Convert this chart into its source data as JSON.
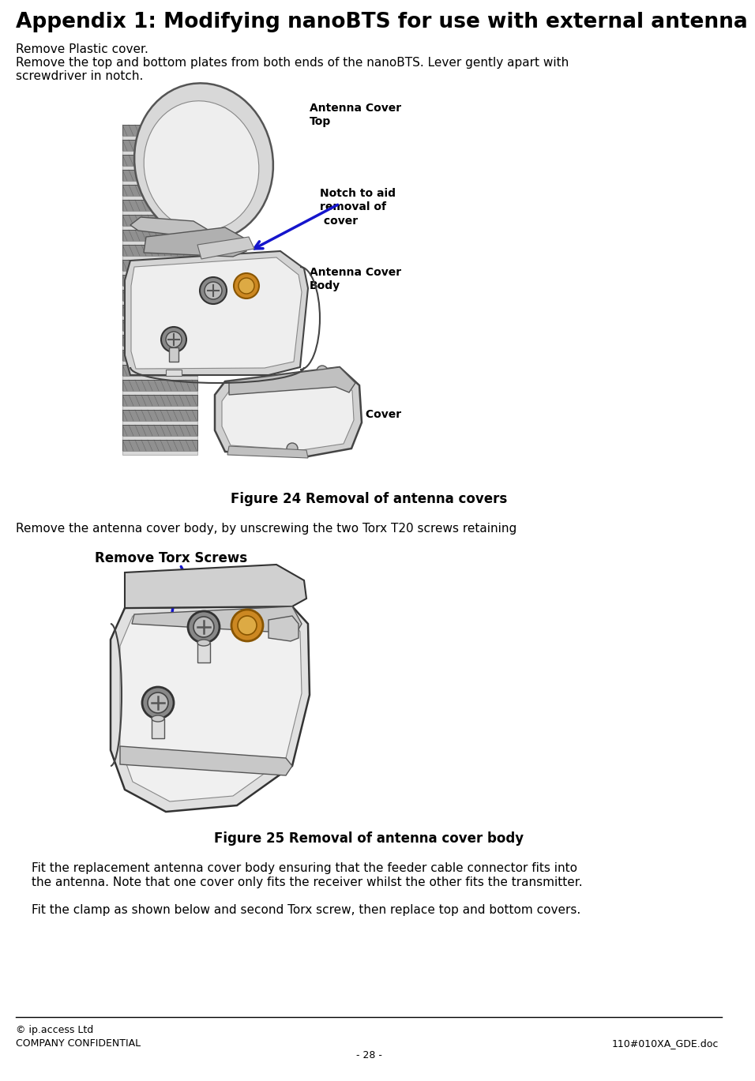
{
  "title": "Appendix 1: Modifying nanoBTS for use with external antenna",
  "title_fontsize": 19,
  "title_fontweight": "bold",
  "body_fontsize": 11,
  "label_fontsize": 10,
  "label_fontweight": "bold",
  "fig_caption1": "Figure 24 Removal of antenna covers",
  "fig_caption2": "Figure 25 Removal of antenna cover body",
  "para1_line1": "Remove Plastic cover.",
  "para1_line2": "Remove the top and bottom plates from both ends of the nanoBTS. Lever gently apart with",
  "para1_line3": "screwdriver in notch.",
  "para2": "Remove the antenna cover body, by unscrewing the two Torx T20 screws retaining",
  "para3_line1": "Fit the replacement antenna cover body ensuring that the feeder cable connector fits into",
  "para3_line2": "the antenna. Note that one cover only fits the receiver whilst the other fits the transmitter.",
  "para4": "Fit the clamp as shown below and second Torx screw, then replace top and bottom covers.",
  "footer_left1": "© ip.access Ltd",
  "footer_left2": "COMPANY CONFIDENTIAL",
  "footer_right": "110#010XA_GDE.doc",
  "footer_center": "- 28 -",
  "label_antenna_cover_top": "Antenna Cover\nTop",
  "label_notch": "Notch to aid\nremoval of\n cover",
  "label_antenna_cover_body": "Antenna Cover\nBody",
  "label_antenna_cover_bottom": "Antenna Cover\nBottom",
  "label_remove_torx": "Remove Torx Screws",
  "bg_color": "#ffffff",
  "text_color": "#000000",
  "arrow_color": "#1515cc"
}
